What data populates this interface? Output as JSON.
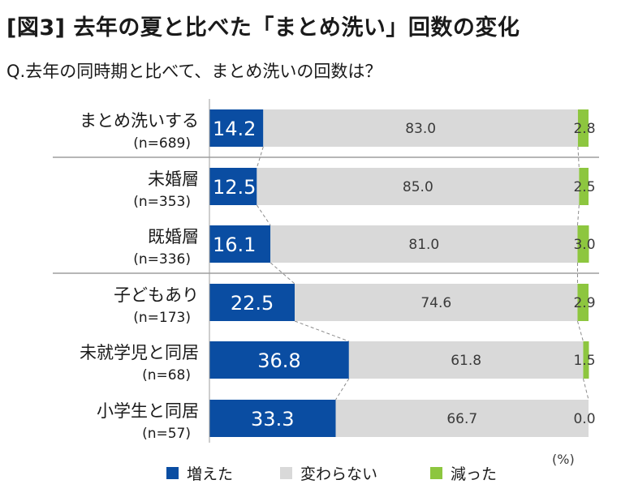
{
  "title": "[図3] 去年の夏と比べた「まとめ洗い」回数の変化",
  "subtitle": "Q.去年の同時期と比べて、まとめ洗いの回数は？",
  "unit_note": "(%)",
  "colors": {
    "increased": "#0a4da2",
    "unchanged": "#d9d9d9",
    "decreased": "#8dc63f",
    "divider": "#9e9e9e"
  },
  "chart_data": {
    "type": "bar",
    "stacked": true,
    "orientation": "horizontal",
    "xlim": [
      0,
      100
    ],
    "categories": [
      {
        "label": "まとめ洗いする",
        "n": "(n=689)"
      },
      {
        "label": "未婚層",
        "n": "(n=353)"
      },
      {
        "label": "既婚層",
        "n": "(n=336)"
      },
      {
        "label": "子どもあり",
        "n": "(n=173)"
      },
      {
        "label": "未就学児と同居",
        "n": "(n=68)"
      },
      {
        "label": "小学生と同居",
        "n": "(n=57)"
      }
    ],
    "series": [
      {
        "name": "増えた",
        "values": [
          14.2,
          12.5,
          16.1,
          22.5,
          36.8,
          33.3
        ]
      },
      {
        "name": "変わらない",
        "values": [
          83.0,
          85.0,
          81.0,
          74.6,
          61.8,
          66.7
        ]
      },
      {
        "name": "減った",
        "values": [
          2.8,
          2.5,
          3.0,
          2.9,
          1.5,
          0.0
        ]
      }
    ],
    "group_dividers_after": [
      0,
      2
    ]
  }
}
